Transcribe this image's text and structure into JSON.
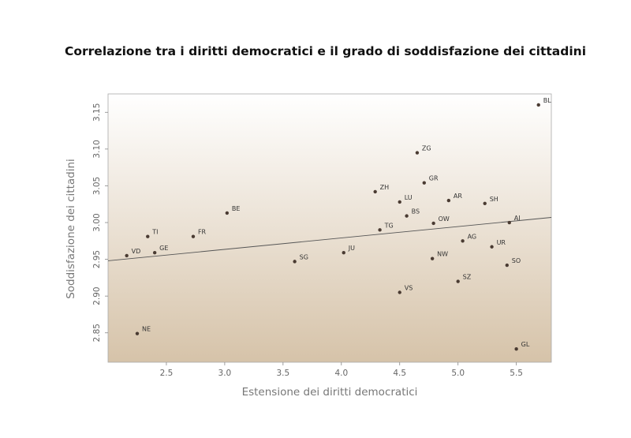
{
  "chart_data": {
    "type": "scatter",
    "title": "Correlazione tra i diritti democratici e il grado di soddisfazione dei cittadini",
    "xlabel": "Estensione dei diritti democratici",
    "ylabel": "Soddisfazione dei cittadini",
    "xlim": [
      2.0,
      5.8
    ],
    "ylim": [
      2.81,
      3.175
    ],
    "x_ticks": [
      2.5,
      3.0,
      3.5,
      4.0,
      4.5,
      5.0,
      5.5
    ],
    "x_tick_labels": [
      "2.5",
      "3.0",
      "3.5",
      "4.0",
      "4.5",
      "5.0",
      "5.5"
    ],
    "y_ticks": [
      2.85,
      2.9,
      2.95,
      3.0,
      3.05,
      3.1,
      3.15
    ],
    "y_tick_labels": [
      "2.85",
      "2.90",
      "2.95",
      "3.00",
      "3.05",
      "3.10",
      "3.15"
    ],
    "points": [
      {
        "label": "BL",
        "x": 5.69,
        "y": 3.16
      },
      {
        "label": "ZG",
        "x": 4.65,
        "y": 3.095
      },
      {
        "label": "GR",
        "x": 4.71,
        "y": 3.054
      },
      {
        "label": "ZH",
        "x": 4.29,
        "y": 3.042
      },
      {
        "label": "LU",
        "x": 4.5,
        "y": 3.028
      },
      {
        "label": "AR",
        "x": 4.92,
        "y": 3.03
      },
      {
        "label": "SH",
        "x": 5.23,
        "y": 3.026
      },
      {
        "label": "BE",
        "x": 3.02,
        "y": 3.013
      },
      {
        "label": "BS",
        "x": 4.56,
        "y": 3.009
      },
      {
        "label": "OW",
        "x": 4.79,
        "y": 2.999
      },
      {
        "label": "AI",
        "x": 5.44,
        "y": 3.0
      },
      {
        "label": "TG",
        "x": 4.33,
        "y": 2.99
      },
      {
        "label": "TI",
        "x": 2.34,
        "y": 2.981
      },
      {
        "label": "FR",
        "x": 2.73,
        "y": 2.981
      },
      {
        "label": "AG",
        "x": 5.04,
        "y": 2.975
      },
      {
        "label": "UR",
        "x": 5.29,
        "y": 2.967
      },
      {
        "label": "JU",
        "x": 4.02,
        "y": 2.959
      },
      {
        "label": "GE",
        "x": 2.4,
        "y": 2.959
      },
      {
        "label": "VD",
        "x": 2.16,
        "y": 2.955
      },
      {
        "label": "NW",
        "x": 4.78,
        "y": 2.951
      },
      {
        "label": "SG",
        "x": 3.6,
        "y": 2.947
      },
      {
        "label": "SO",
        "x": 5.42,
        "y": 2.942
      },
      {
        "label": "SZ",
        "x": 5.0,
        "y": 2.92
      },
      {
        "label": "VS",
        "x": 4.5,
        "y": 2.905
      },
      {
        "label": "NE",
        "x": 2.25,
        "y": 2.849
      },
      {
        "label": "GL",
        "x": 5.5,
        "y": 2.828
      }
    ],
    "trendline": {
      "x": [
        2.0,
        5.8
      ],
      "y": [
        2.948,
        3.007
      ]
    },
    "grid": false,
    "legend": "none",
    "colors": {
      "point": "#4a3b32",
      "trendline": "#555555",
      "bg_top": "#ffffff",
      "bg_bottom": "#d6c3a9"
    }
  }
}
